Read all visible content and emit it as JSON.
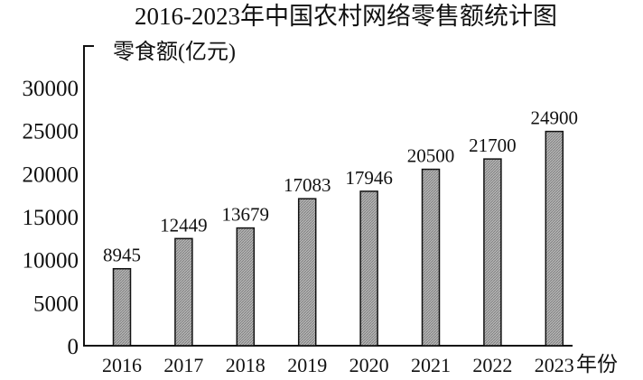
{
  "chart_data": {
    "type": "bar",
    "title": "2016-2023年中国农村网络零售额统计图",
    "ylabel": "零食额(亿元)",
    "xlabel": "年份",
    "categories": [
      "2016",
      "2017",
      "2018",
      "2019",
      "2020",
      "2021",
      "2022",
      "2023"
    ],
    "values": [
      8945,
      12449,
      13679,
      17083,
      17946,
      20500,
      21700,
      24900
    ],
    "data_labels": [
      "8945",
      "12449",
      "13679",
      "17083",
      "17946",
      "20500",
      "21700",
      "24900"
    ],
    "ylim": [
      0,
      30000
    ],
    "yticks": [
      "0",
      "5000",
      "10000",
      "15000",
      "20000",
      "25000",
      "30000"
    ],
    "grid": false,
    "legend": "none",
    "colors": {
      "bar_fill": "#a8a8a8",
      "bar_stroke": "#111111",
      "axis": "#111111"
    }
  }
}
